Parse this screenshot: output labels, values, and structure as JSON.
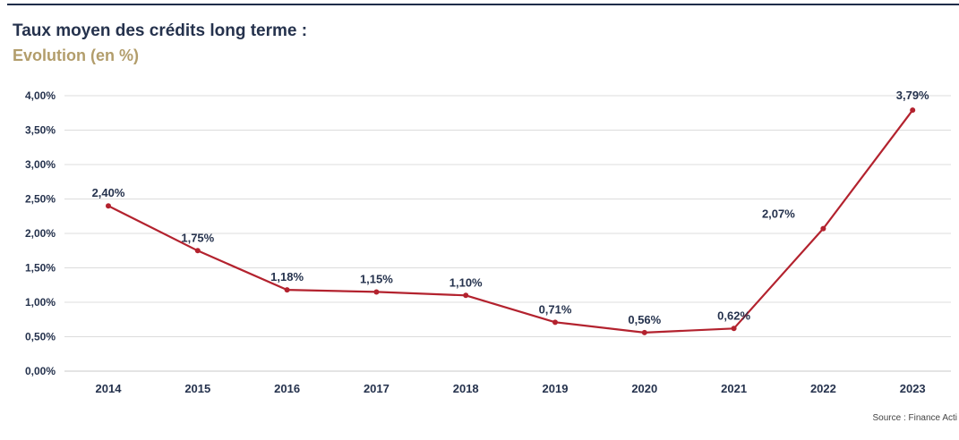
{
  "colors": {
    "line": "#b3222e",
    "grid": "#dcdcdc",
    "text": "#25324d",
    "subtitle": "#b29d6b"
  },
  "source": "Source : Finance Acti",
  "chart_data": {
    "type": "line",
    "title": "Taux moyen des crédits long terme :",
    "subtitle": "Evolution (en %)",
    "xlabel": "",
    "ylabel": "",
    "categories": [
      "2014",
      "2015",
      "2016",
      "2017",
      "2018",
      "2019",
      "2020",
      "2021",
      "2022",
      "2023"
    ],
    "values": [
      2.4,
      1.75,
      1.18,
      1.15,
      1.1,
      0.71,
      0.56,
      0.62,
      2.07,
      3.79
    ],
    "data_labels": [
      "2,40%",
      "1,75%",
      "1,18%",
      "1,15%",
      "1,10%",
      "0,71%",
      "0,56%",
      "0,62%",
      "2,07%",
      "3,79%"
    ],
    "ylim": [
      0,
      4
    ],
    "y_ticks": [
      0,
      0.5,
      1,
      1.5,
      2,
      2.5,
      3,
      3.5,
      4
    ],
    "y_tick_labels": [
      "0,00%",
      "0,50%",
      "1,00%",
      "1,50%",
      "2,00%",
      "2,50%",
      "3,00%",
      "3,50%",
      "4,00%"
    ],
    "grid": true,
    "legend": "none"
  }
}
